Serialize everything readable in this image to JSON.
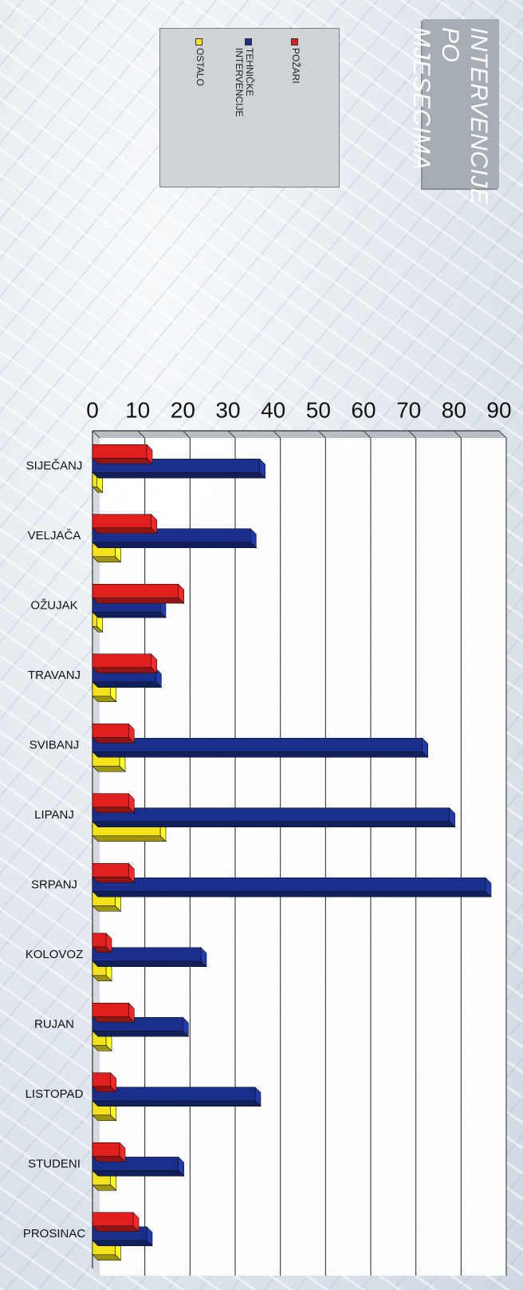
{
  "title": {
    "line1": "INTERVENCIJE",
    "line2": "PO MJESECIMA"
  },
  "legend": {
    "items": [
      {
        "label": "POŽARI",
        "color": "#e11f1f"
      },
      {
        "label": "TEHNIČKE\nINTERVENCIJE",
        "color": "#1a2f8c"
      },
      {
        "label": "OSTALO",
        "color": "#f4e31b"
      }
    ]
  },
  "chart_data": {
    "type": "bar",
    "categories": [
      "SIJEČANJ",
      "VELJAČA",
      "OŽUJAK",
      "TRAVANJ",
      "SVIBANJ",
      "LIPANJ",
      "SRPANJ",
      "KOLOVOZ",
      "RUJAN",
      "LISTOPAD",
      "STUDENI",
      "PROSINAC"
    ],
    "series": [
      {
        "name": "POŽARI",
        "color": "#e11f1f",
        "values": [
          12,
          13,
          19,
          13,
          8,
          8,
          8,
          3,
          8,
          4,
          6,
          9
        ]
      },
      {
        "name": "TEHNIČKE INTERVENCIJE",
        "color": "#1a2f8c",
        "values": [
          37,
          35,
          15,
          14,
          73,
          79,
          87,
          24,
          20,
          36,
          19,
          12
        ]
      },
      {
        "name": "OSTALO",
        "color": "#f4e31b",
        "values": [
          1,
          5,
          1,
          4,
          6,
          15,
          5,
          3,
          3,
          4,
          4,
          5
        ]
      }
    ],
    "ylim": [
      0,
      90
    ],
    "yticks": [
      "0",
      "10",
      "20",
      "30",
      "40",
      "50",
      "60",
      "70",
      "80",
      "90"
    ],
    "grid": true,
    "legend_position": "left"
  }
}
